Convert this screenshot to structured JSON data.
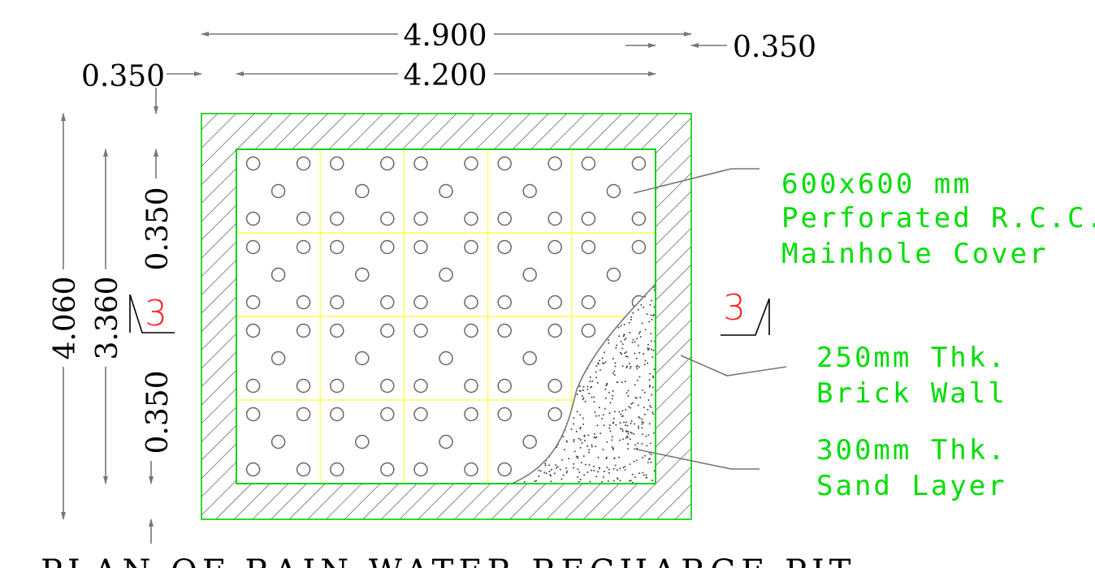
{
  "drawing": {
    "title": "PLAN OF RAIN WATER RECHARGE PIT",
    "colors": {
      "outline": "#00cc00",
      "grid": "#ffff33",
      "label": "#00dd00",
      "section": "#ff2222",
      "dimension": "#000000",
      "leader": "#777777",
      "hatch": "#555555"
    },
    "dimensions": {
      "overall_width": "4.900",
      "right_offset": "0.350",
      "left_offset": "0.350",
      "inner_width": "4.200",
      "overall_height": "4.060",
      "inner_height": "3.360",
      "top_offset": "0.350",
      "bottom_offset": "0.350"
    },
    "section_markers": {
      "left": "3",
      "right": "3"
    },
    "labels": {
      "cover": [
        "600x600 mm",
        "Perforated R.C.C.",
        "Mainhole Cover"
      ],
      "wall": [
        "250mm Thk.",
        "Brick Wall"
      ],
      "sand": [
        "300mm Thk.",
        "Sand Layer"
      ]
    },
    "grid": {
      "columns": 5,
      "rows": 4
    }
  }
}
